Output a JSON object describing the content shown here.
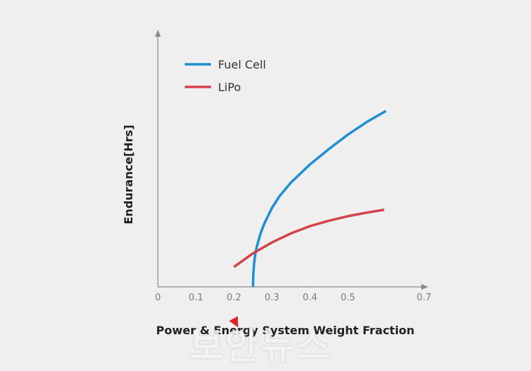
{
  "chart_data": {
    "type": "line",
    "xlabel": "Power & Energy System Weight Fraction",
    "ylabel": "Endurance[Hrs]",
    "xlim": [
      0,
      0.7
    ],
    "ylim": [
      0,
      10
    ],
    "xticks": [
      "0",
      "0.1",
      "0.2",
      "0.3",
      "0.4",
      "0.5",
      "0.7"
    ],
    "grid": false,
    "legend_position": "top-left",
    "series": [
      {
        "name": "Fuel Cell",
        "color": "#1d8fd2",
        "x": [
          0.25,
          0.251,
          0.253,
          0.256,
          0.26,
          0.27,
          0.28,
          0.3,
          0.32,
          0.35,
          0.4,
          0.45,
          0.5,
          0.55,
          0.6
        ],
        "y": [
          0.0,
          0.7,
          1.3,
          1.8,
          2.2,
          2.95,
          3.5,
          4.35,
          5.0,
          5.75,
          6.75,
          7.6,
          8.4,
          9.1,
          9.7
        ]
      },
      {
        "name": "LiPo",
        "color": "#d4424a",
        "x": [
          0.2,
          0.25,
          0.3,
          0.35,
          0.4,
          0.45,
          0.5,
          0.55,
          0.595
        ],
        "y": [
          1.1,
          1.85,
          2.45,
          2.95,
          3.35,
          3.65,
          3.9,
          4.1,
          4.25
        ]
      }
    ]
  },
  "watermark": {
    "text": "보안뉴스"
  }
}
